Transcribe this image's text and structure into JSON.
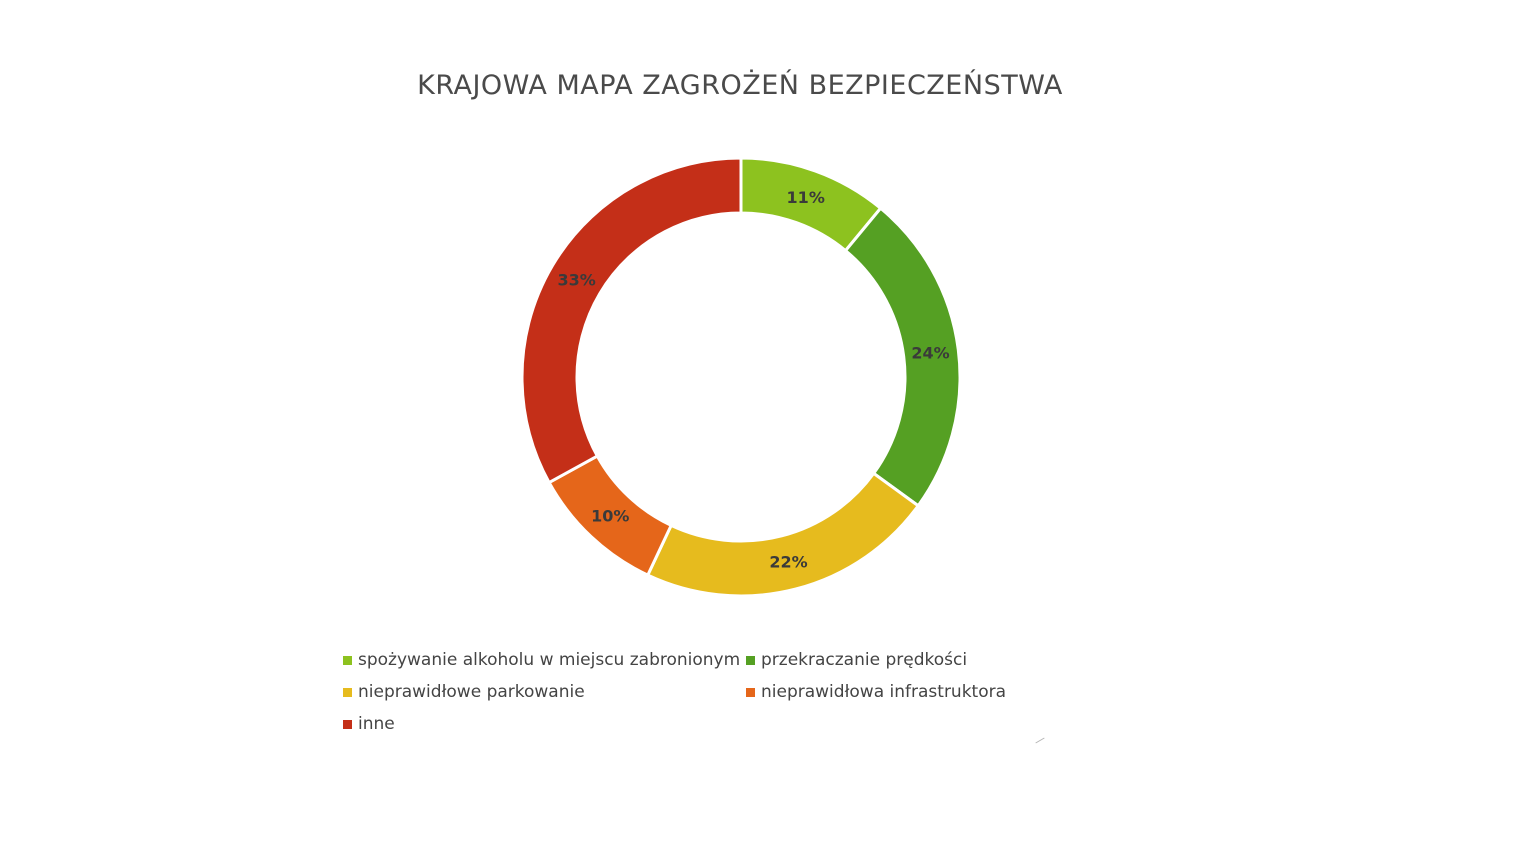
{
  "chart_data": {
    "type": "pie",
    "variant": "donut",
    "title": "KRAJOWA MAPA ZAGROŻEŃ BEZPIECZEŃSTWA",
    "legend_position": "bottom",
    "slices": [
      {
        "name": "spożywanie alkoholu w miejscu zabronionym",
        "value": 11,
        "label": "11%",
        "color": "#8dc21f"
      },
      {
        "name": "przekraczanie prędkości",
        "value": 24,
        "label": "24%",
        "color": "#55a023"
      },
      {
        "name": "nieprawidłowe parkowanie",
        "value": 22,
        "label": "22%",
        "color": "#e6bb1e"
      },
      {
        "name": "nieprawidłowa infrastruktora",
        "value": 10,
        "label": "10%",
        "color": "#e5661a"
      },
      {
        "name": "inne",
        "value": 33,
        "label": "33%",
        "color": "#c42f18"
      }
    ]
  }
}
